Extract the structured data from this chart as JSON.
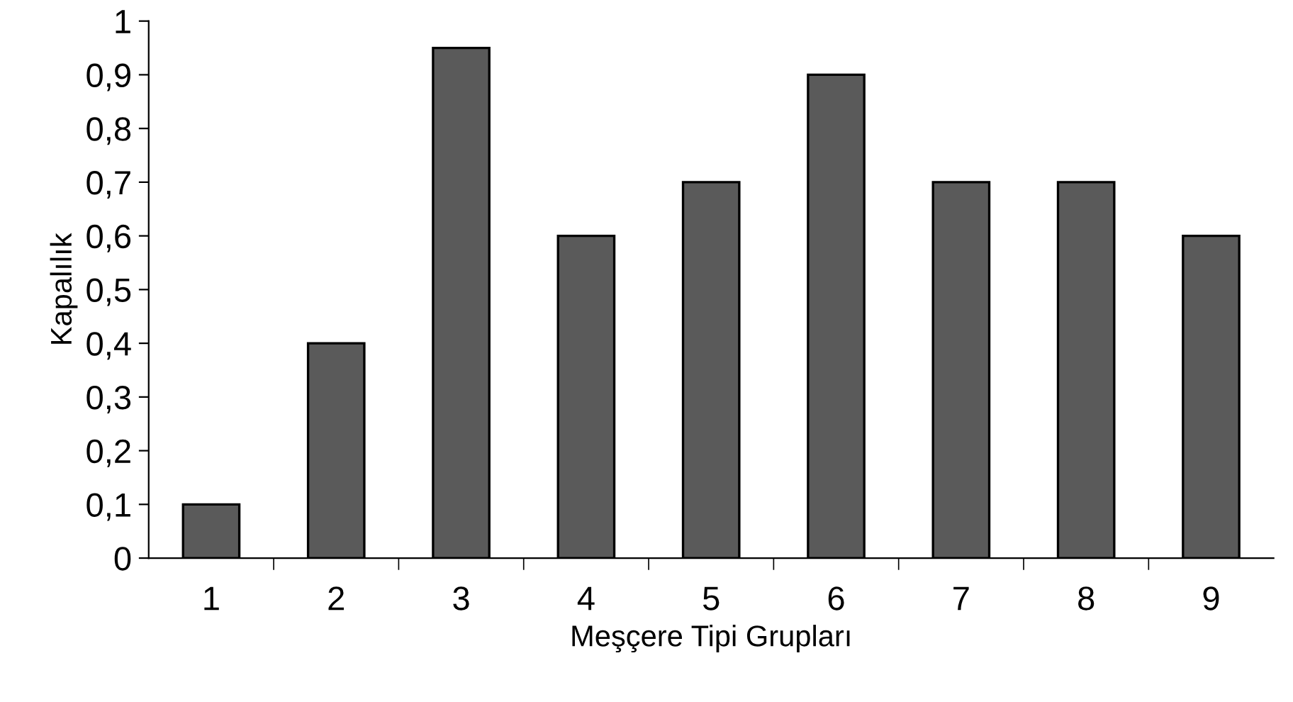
{
  "chart_data": {
    "type": "bar",
    "xlabel": "Meşçere Tipi Grupları",
    "ylabel": "Kapalılık",
    "categories": [
      "1",
      "2",
      "3",
      "4",
      "5",
      "6",
      "7",
      "8",
      "9"
    ],
    "values": [
      0.1,
      0.4,
      0.95,
      0.6,
      0.7,
      0.9,
      0.7,
      0.7,
      0.6
    ],
    "color": "#5a5a5a",
    "ylim": [
      0,
      1
    ],
    "yticks": [
      0,
      {
        "value": 0.1,
        "label": "0,1"
      },
      {
        "value": 0.2,
        "label": "0,2"
      },
      {
        "value": 0.3,
        "label": "0,3"
      },
      {
        "value": 0.4,
        "label": "0,4"
      },
      {
        "value": 0.5,
        "label": "0,5"
      },
      {
        "value": 0.6,
        "label": "0,6"
      },
      {
        "value": 0.7,
        "label": "0,7"
      },
      {
        "value": 0.8,
        "label": "0,8"
      },
      {
        "value": 0.9,
        "label": "0,9"
      },
      1
    ],
    "grid": false
  }
}
